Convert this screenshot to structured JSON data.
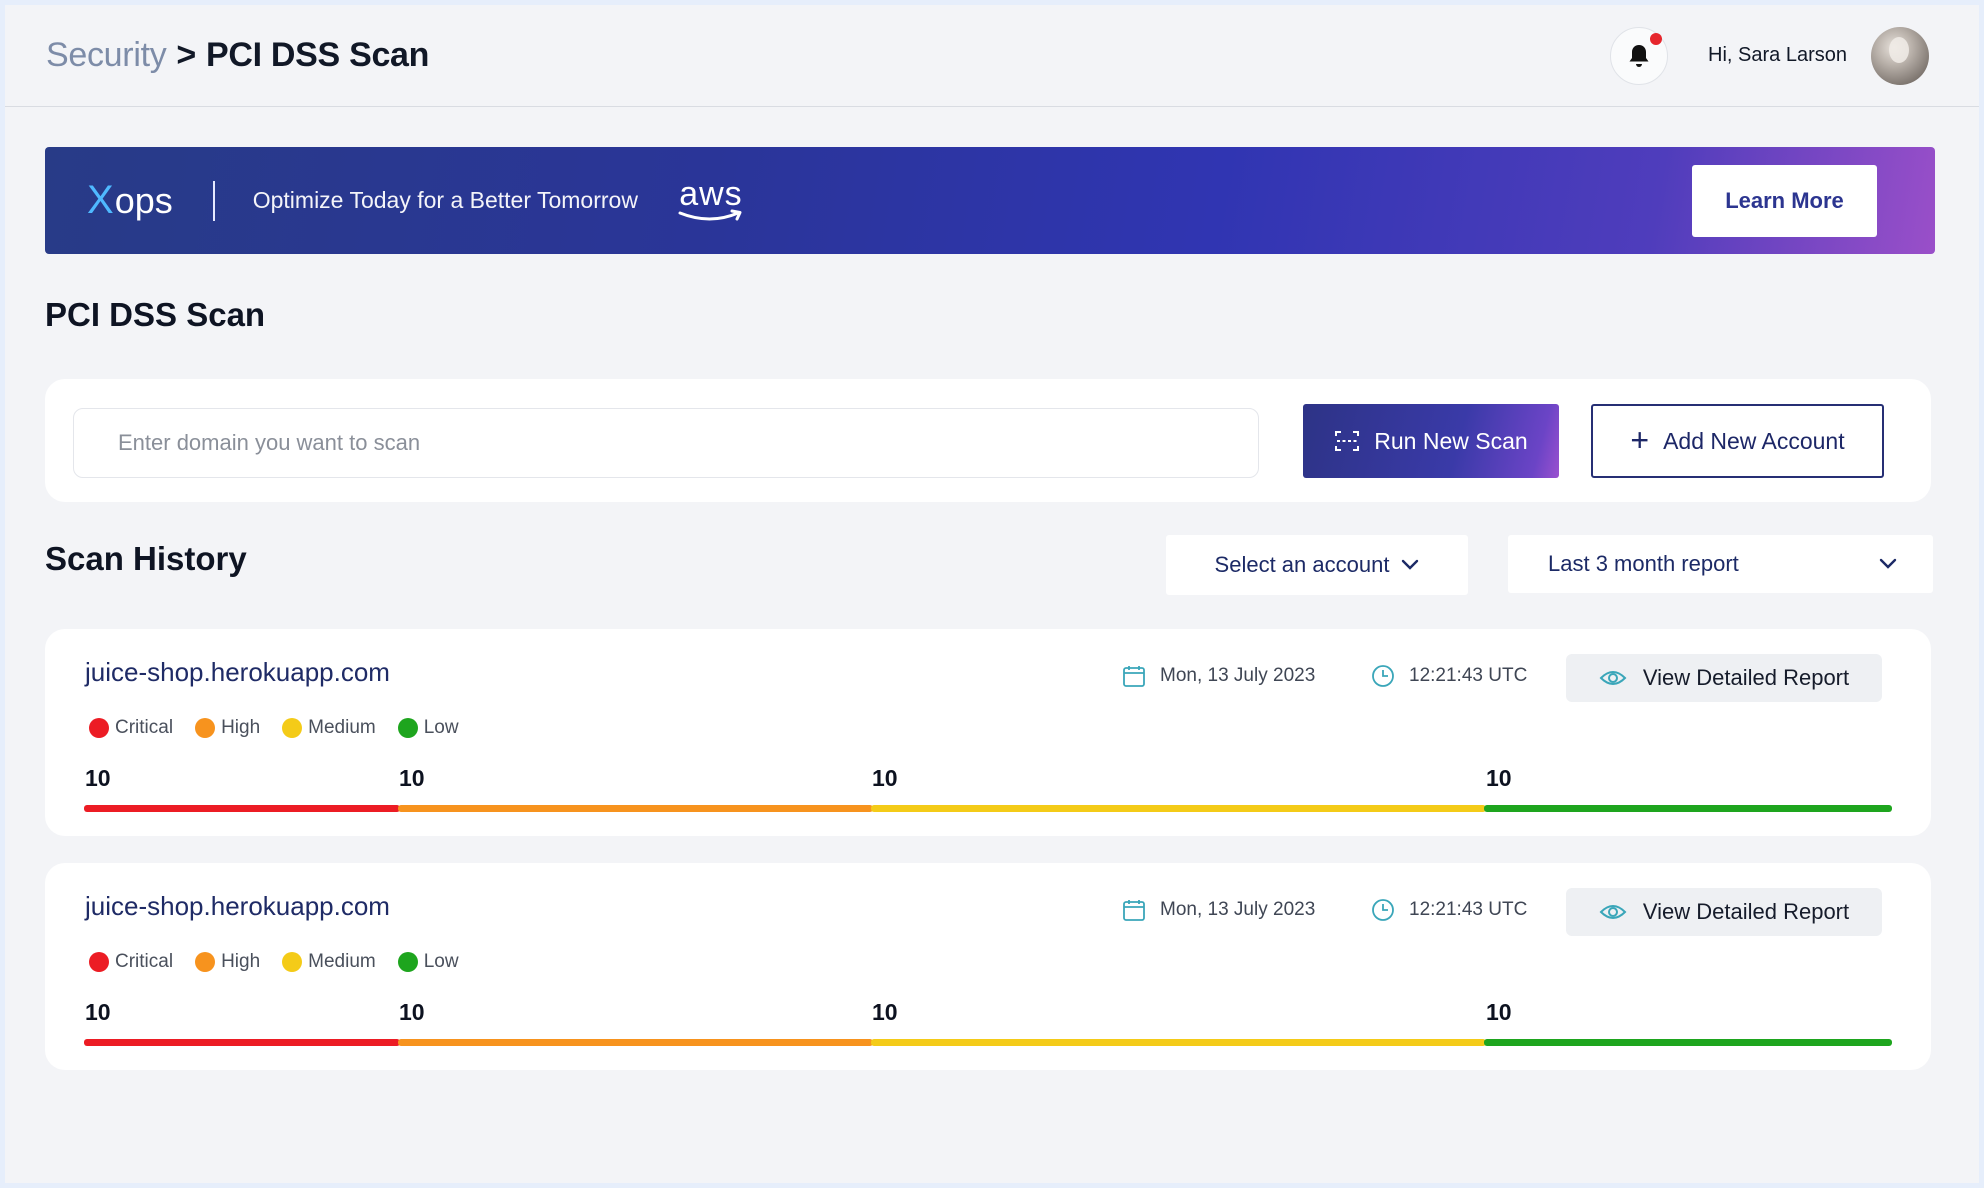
{
  "header": {
    "breadcrumb_parent": "Security",
    "breadcrumb_sep": ">",
    "breadcrumb_current": "PCI DSS Scan",
    "greeting": "Hi, Sara Larson"
  },
  "banner": {
    "logo_x": "X",
    "logo_rest": "ops",
    "tagline": "Optimize Today for a Better Tomorrow",
    "partner": "aws",
    "cta": "Learn More"
  },
  "page_title": "PCI DSS Scan",
  "scan_form": {
    "placeholder": "Enter domain you want to scan",
    "value": "",
    "run_label": "Run New Scan",
    "add_label": "Add New Account"
  },
  "history": {
    "title": "Scan History",
    "account_select": "Select an account",
    "range_select": "Last 3 month report",
    "items": [
      {
        "domain": "juice-shop.herokuapp.com",
        "date": "Mon, 13 July  2023",
        "time": "12:21:43  UTC",
        "view_label": "View Detailed Report",
        "legend": [
          "Critical",
          "High",
          "Medium",
          "Low"
        ],
        "counts": [
          "10",
          "10",
          "10",
          "10"
        ]
      },
      {
        "domain": "juice-shop.herokuapp.com",
        "date": "Mon, 13 July  2023",
        "time": "12:21:43  UTC",
        "view_label": "View Detailed Report",
        "legend": [
          "Critical",
          "High",
          "Medium",
          "Low"
        ],
        "counts": [
          "10",
          "10",
          "10",
          "10"
        ]
      }
    ]
  },
  "colors": {
    "critical": "#ec1c24",
    "high": "#f7931e",
    "medium": "#f4cb18",
    "low": "#1ea51e",
    "accent": "#2d3386"
  }
}
